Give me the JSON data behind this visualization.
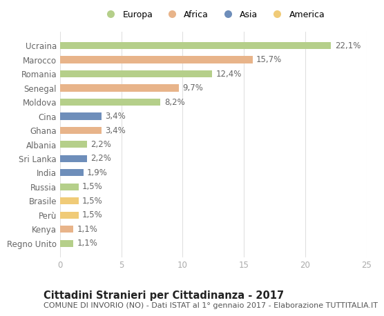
{
  "categories": [
    "Ucraina",
    "Marocco",
    "Romania",
    "Senegal",
    "Moldova",
    "Cina",
    "Ghana",
    "Albania",
    "Sri Lanka",
    "India",
    "Russia",
    "Brasile",
    "Perù",
    "Kenya",
    "Regno Unito"
  ],
  "values": [
    22.1,
    15.7,
    12.4,
    9.7,
    8.2,
    3.4,
    3.4,
    2.2,
    2.2,
    1.9,
    1.5,
    1.5,
    1.5,
    1.1,
    1.1
  ],
  "labels": [
    "22,1%",
    "15,7%",
    "12,4%",
    "9,7%",
    "8,2%",
    "3,4%",
    "3,4%",
    "2,2%",
    "2,2%",
    "1,9%",
    "1,5%",
    "1,5%",
    "1,5%",
    "1,1%",
    "1,1%"
  ],
  "colors": [
    "#b5cf8a",
    "#e8b48a",
    "#b5cf8a",
    "#e8b48a",
    "#b5cf8a",
    "#6e8eba",
    "#e8b48a",
    "#b5cf8a",
    "#6e8eba",
    "#6e8eba",
    "#b5cf8a",
    "#f0cb78",
    "#f0cb78",
    "#e8b48a",
    "#b5cf8a"
  ],
  "legend_labels": [
    "Europa",
    "Africa",
    "Asia",
    "America"
  ],
  "legend_colors": [
    "#b5cf8a",
    "#e8b48a",
    "#6e8eba",
    "#f0cb78"
  ],
  "xlim": [
    0,
    25
  ],
  "xticks": [
    0,
    5,
    10,
    15,
    20,
    25
  ],
  "title": "Cittadini Stranieri per Cittadinanza - 2017",
  "subtitle": "COMUNE DI INVORIO (NO) - Dati ISTAT al 1° gennaio 2017 - Elaborazione TUTTITALIA.IT",
  "bg_color": "#ffffff",
  "bar_height": 0.5,
  "label_fontsize": 8.5,
  "ytick_fontsize": 8.5,
  "xtick_fontsize": 8.5,
  "title_fontsize": 10.5,
  "subtitle_fontsize": 8.0
}
